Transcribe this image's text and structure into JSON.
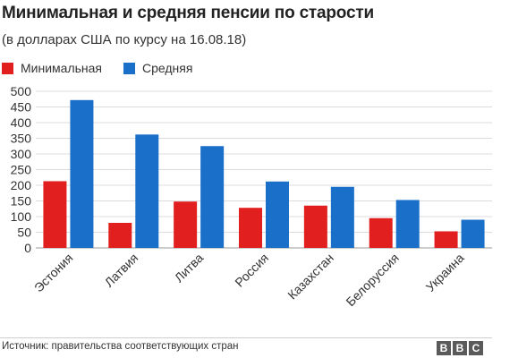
{
  "header": {
    "title": "Минимальная и средняя пенсии по старости",
    "subtitle": "(в долларах США по курсу на 16.08.18)"
  },
  "legend": {
    "items": [
      {
        "label": "Минимальная",
        "color": "#e21f1f"
      },
      {
        "label": "Средняя",
        "color": "#1a6fc9"
      }
    ]
  },
  "chart_data": {
    "type": "bar",
    "categories": [
      "Эстония",
      "Латвия",
      "Литва",
      "Россия",
      "Казахстан",
      "Белоруссия",
      "Украина"
    ],
    "series": [
      {
        "name": "Минимальная",
        "color": "#e21f1f",
        "values": [
          213,
          80,
          148,
          128,
          135,
          95,
          53
        ]
      },
      {
        "name": "Средняя",
        "color": "#1a6fc9",
        "values": [
          472,
          362,
          325,
          212,
          195,
          153,
          90
        ]
      }
    ],
    "ylim": [
      0,
      500
    ],
    "yticks": [
      "0",
      "50",
      "100",
      "150",
      "200",
      "250",
      "300",
      "350",
      "400",
      "450",
      "500"
    ],
    "grid": true
  },
  "footer": {
    "source": "Источник: правительства соответствующих стран",
    "logo_letters": [
      "B",
      "B",
      "C"
    ]
  }
}
